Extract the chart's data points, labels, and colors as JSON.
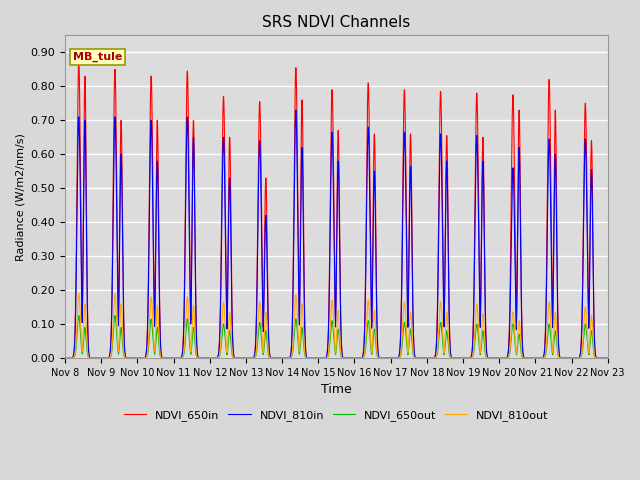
{
  "title": "SRS NDVI Channels",
  "xlabel": "Time",
  "ylabel": "Radiance (W/m2/nm/s)",
  "annotation": "MB_tule",
  "ylim": [
    0.0,
    0.95
  ],
  "yticks": [
    0.0,
    0.1,
    0.2,
    0.3,
    0.4,
    0.5,
    0.6,
    0.7,
    0.8,
    0.9
  ],
  "line_colors": {
    "NDVI_650in": "#ff0000",
    "NDVI_810in": "#0000ff",
    "NDVI_650out": "#00bb00",
    "NDVI_810out": "#ffaa00"
  },
  "background_color": "#dcdcdc",
  "grid_color": "#ffffff",
  "num_days": 15,
  "start_day": 8,
  "peaks_650in": [
    0.87,
    0.85,
    0.83,
    0.845,
    0.77,
    0.755,
    0.855,
    0.79,
    0.81,
    0.79,
    0.785,
    0.78,
    0.775,
    0.82,
    0.75
  ],
  "peaks2_650in": [
    0.83,
    0.7,
    0.7,
    0.7,
    0.65,
    0.53,
    0.76,
    0.67,
    0.66,
    0.66,
    0.655,
    0.65,
    0.73,
    0.73,
    0.64
  ],
  "peaks_810in": [
    0.71,
    0.71,
    0.7,
    0.71,
    0.65,
    0.64,
    0.73,
    0.665,
    0.68,
    0.665,
    0.66,
    0.655,
    0.56,
    0.645,
    0.645
  ],
  "peaks2_810in": [
    0.7,
    0.6,
    0.58,
    0.65,
    0.53,
    0.42,
    0.62,
    0.58,
    0.55,
    0.565,
    0.58,
    0.58,
    0.62,
    0.6,
    0.555
  ],
  "peaks_650out": [
    0.125,
    0.125,
    0.115,
    0.115,
    0.1,
    0.105,
    0.115,
    0.11,
    0.11,
    0.105,
    0.105,
    0.1,
    0.1,
    0.1,
    0.1
  ],
  "peaks2_650out": [
    0.09,
    0.09,
    0.09,
    0.09,
    0.08,
    0.08,
    0.09,
    0.085,
    0.085,
    0.085,
    0.08,
    0.08,
    0.07,
    0.08,
    0.08
  ],
  "peaks_810out": [
    0.19,
    0.19,
    0.18,
    0.18,
    0.165,
    0.165,
    0.185,
    0.17,
    0.17,
    0.165,
    0.165,
    0.16,
    0.135,
    0.165,
    0.15
  ],
  "peaks2_810out": [
    0.16,
    0.16,
    0.155,
    0.155,
    0.135,
    0.135,
    0.16,
    0.14,
    0.14,
    0.135,
    0.135,
    0.13,
    0.11,
    0.135,
    0.125
  ]
}
